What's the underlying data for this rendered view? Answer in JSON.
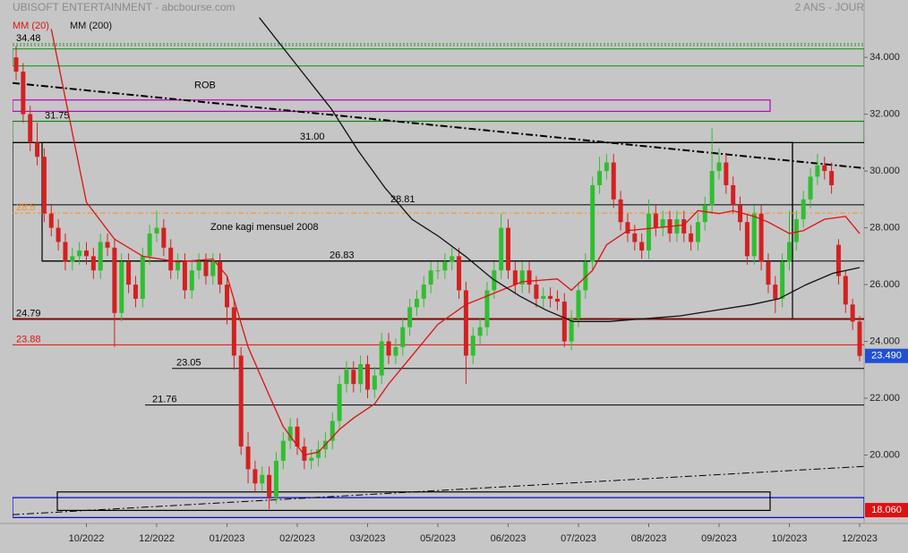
{
  "chart_data": {
    "type": "candlestick",
    "title": "UBISOFT ENTERTAINMENT - abcbourse.com",
    "subtitle": "2 ANS - JOUR",
    "categories": [
      null,
      null,
      null,
      null,
      null,
      null,
      null,
      null,
      null,
      null,
      "10/2022",
      null,
      null,
      null,
      null,
      null,
      null,
      null,
      null,
      null,
      "12/2022",
      null,
      null,
      null,
      null,
      null,
      null,
      null,
      null,
      null,
      "01/2023",
      null,
      null,
      null,
      null,
      null,
      null,
      null,
      null,
      null,
      "02/2023",
      null,
      null,
      null,
      null,
      null,
      null,
      null,
      null,
      null,
      "03/2023",
      null,
      null,
      null,
      null,
      null,
      null,
      null,
      null,
      null,
      "05/2023",
      null,
      null,
      null,
      null,
      null,
      null,
      null,
      null,
      null,
      "06/2023",
      null,
      null,
      null,
      null,
      null,
      null,
      null,
      null,
      null,
      "07/2023",
      null,
      null,
      null,
      null,
      null,
      null,
      null,
      null,
      null,
      "08/2023",
      null,
      null,
      null,
      null,
      null,
      null,
      null,
      null,
      null,
      "09/2023",
      null,
      null,
      null,
      null,
      null,
      null,
      null,
      null,
      null,
      "10/2023",
      null,
      null,
      null,
      null,
      null,
      null,
      null,
      null,
      null,
      "12/2023"
    ],
    "ohlc": {
      "up_color": "#2fbf2f",
      "down_color": "#d42020",
      "open": [
        34.0,
        33.5,
        32.0,
        31.0,
        30.5,
        28.5,
        28.0,
        27.5,
        26.8,
        27.0,
        27.2,
        27.0,
        26.5,
        27.5,
        27.3,
        25.0,
        26.8,
        26.0,
        25.5,
        27.0,
        27.8,
        28.0,
        27.3,
        26.5,
        26.8,
        25.8,
        26.5,
        26.8,
        26.3,
        26.8,
        26.0,
        25.2,
        23.5,
        20.3,
        19.5,
        19.0,
        19.3,
        18.5,
        19.8,
        20.5,
        21.0,
        20.3,
        19.8,
        19.9,
        20.2,
        20.5,
        21.2,
        22.5,
        23.0,
        22.5,
        23.2,
        22.3,
        22.8,
        24.0,
        23.5,
        23.8,
        24.5,
        25.2,
        25.5,
        26.0,
        26.5,
        26.5,
        26.8,
        27.0,
        25.8,
        23.5,
        24.2,
        24.5,
        25.8,
        26.5,
        28.0,
        26.5,
        26.0,
        26.5,
        26.0,
        25.5,
        25.6,
        25.5,
        25.4,
        24.0,
        24.8,
        25.8,
        26.8,
        29.5,
        30.0,
        30.3,
        29.0,
        28.2,
        27.8,
        27.5,
        27.2,
        28.5,
        28.0,
        28.3,
        27.8,
        28.3,
        27.8,
        27.5,
        28.2,
        28.8,
        30.0,
        30.3,
        29.5,
        28.8,
        28.2,
        27.0,
        28.5,
        26.8,
        26.0,
        25.5,
        26.8,
        27.5,
        28.3,
        29.0,
        29.8,
        30.2,
        30.0,
        27.4,
        26.3,
        25.3,
        24.7
      ],
      "high": [
        34.4,
        33.8,
        32.3,
        31.7,
        30.8,
        28.8,
        28.3,
        27.8,
        27.3,
        27.5,
        27.5,
        27.3,
        27.8,
        27.8,
        27.6,
        27.1,
        27.1,
        26.3,
        27.3,
        28.1,
        28.6,
        28.3,
        27.6,
        27.1,
        27.1,
        26.8,
        27.1,
        27.1,
        27.1,
        27.1,
        26.3,
        25.5,
        23.8,
        20.8,
        19.8,
        19.6,
        19.6,
        20.1,
        20.8,
        21.3,
        21.3,
        20.6,
        20.2,
        20.5,
        20.8,
        21.5,
        22.8,
        23.3,
        23.3,
        23.5,
        23.5,
        23.1,
        24.3,
        24.3,
        24.1,
        24.8,
        25.5,
        25.8,
        26.3,
        26.8,
        26.8,
        27.1,
        27.3,
        27.3,
        26.1,
        24.5,
        24.8,
        26.1,
        26.8,
        28.5,
        28.3,
        26.8,
        26.8,
        26.8,
        26.3,
        25.9,
        25.9,
        25.8,
        25.7,
        25.1,
        26.1,
        27.1,
        29.8,
        30.5,
        30.6,
        30.6,
        29.3,
        28.5,
        28.1,
        27.8,
        29.0,
        28.8,
        28.6,
        28.6,
        28.6,
        28.6,
        28.1,
        28.5,
        29.1,
        31.5,
        30.8,
        30.6,
        29.8,
        29.1,
        28.5,
        28.8,
        28.8,
        27.1,
        26.3,
        27.1,
        28.6,
        28.6,
        29.3,
        30.1,
        30.6,
        30.5,
        30.3,
        27.6,
        26.5,
        25.5,
        24.9
      ],
      "low": [
        33.2,
        31.7,
        30.7,
        30.2,
        28.2,
        27.7,
        27.2,
        26.5,
        26.5,
        26.7,
        26.7,
        26.2,
        26.2,
        27.0,
        23.8,
        24.7,
        25.7,
        25.2,
        25.2,
        26.7,
        27.5,
        27.0,
        26.2,
        26.2,
        25.5,
        25.5,
        26.2,
        26.0,
        26.0,
        25.7,
        24.6,
        23.0,
        20.0,
        19.0,
        18.7,
        18.7,
        18.1,
        18.3,
        19.5,
        20.2,
        20.0,
        19.5,
        19.5,
        19.6,
        19.9,
        20.2,
        20.9,
        22.2,
        22.2,
        22.2,
        22.0,
        22.0,
        22.5,
        23.2,
        23.2,
        23.5,
        24.2,
        24.9,
        25.2,
        25.7,
        26.2,
        26.2,
        26.5,
        25.5,
        22.5,
        23.2,
        23.9,
        24.2,
        25.5,
        26.2,
        26.2,
        25.7,
        25.7,
        25.7,
        25.2,
        25.2,
        25.2,
        25.1,
        23.8,
        23.7,
        24.5,
        25.5,
        26.5,
        29.2,
        29.7,
        28.7,
        27.9,
        27.5,
        27.2,
        26.9,
        26.9,
        27.7,
        27.7,
        27.5,
        27.5,
        27.5,
        27.2,
        27.2,
        27.9,
        28.5,
        29.7,
        29.2,
        28.5,
        27.9,
        26.7,
        26.7,
        26.5,
        25.7,
        25.0,
        25.2,
        26.5,
        27.2,
        28.0,
        28.7,
        29.5,
        29.7,
        29.2,
        26.0,
        25.0,
        24.4,
        23.3
      ],
      "close": [
        33.5,
        32.0,
        31.0,
        30.5,
        28.5,
        28.0,
        27.5,
        26.8,
        27.0,
        27.2,
        27.0,
        26.5,
        27.5,
        27.3,
        25.0,
        26.8,
        26.0,
        25.5,
        27.0,
        27.8,
        28.0,
        27.3,
        26.5,
        26.8,
        25.8,
        26.5,
        26.8,
        26.3,
        26.8,
        26.0,
        25.2,
        23.5,
        20.3,
        19.5,
        19.0,
        19.3,
        18.5,
        19.8,
        20.5,
        21.0,
        20.3,
        19.8,
        19.9,
        20.2,
        20.5,
        21.2,
        22.5,
        23.0,
        22.5,
        23.2,
        22.3,
        22.8,
        24.0,
        23.5,
        23.8,
        24.5,
        25.2,
        25.5,
        26.0,
        26.5,
        26.5,
        26.8,
        27.0,
        25.8,
        23.5,
        24.2,
        24.5,
        25.8,
        26.5,
        28.0,
        26.5,
        26.0,
        26.5,
        26.0,
        25.5,
        25.6,
        25.5,
        25.4,
        24.0,
        24.8,
        25.8,
        26.8,
        29.5,
        30.0,
        30.3,
        29.0,
        28.2,
        27.8,
        27.5,
        27.2,
        28.5,
        28.0,
        28.3,
        27.8,
        28.3,
        27.8,
        27.5,
        28.2,
        28.8,
        30.0,
        30.3,
        29.5,
        28.8,
        28.2,
        27.0,
        28.5,
        26.8,
        26.0,
        25.5,
        26.8,
        27.5,
        28.3,
        29.0,
        29.8,
        30.2,
        30.0,
        29.5,
        26.3,
        25.3,
        24.7,
        23.49
      ]
    },
    "series": [
      {
        "name": "MM (20)",
        "color": "#e01010",
        "x": [
          5,
          10,
          14,
          18,
          23,
          28,
          30,
          33,
          36,
          38,
          41,
          43,
          46,
          48,
          51,
          53,
          56,
          60,
          64,
          68,
          72,
          77,
          79,
          82,
          84,
          87,
          91,
          95,
          97,
          100,
          102,
          105,
          107,
          110,
          112,
          115,
          118,
          120
        ],
        "values": [
          35.0,
          28.9,
          27.6,
          27.0,
          26.8,
          26.9,
          26.3,
          23.8,
          22.1,
          21.0,
          20.0,
          20.1,
          20.9,
          21.3,
          21.8,
          22.5,
          23.4,
          24.6,
          25.3,
          25.7,
          26.1,
          26.2,
          25.8,
          26.5,
          27.4,
          27.9,
          28.0,
          28.1,
          28.6,
          28.5,
          28.6,
          28.4,
          28.2,
          27.8,
          27.9,
          28.3,
          28.4,
          27.8
        ]
      },
      {
        "name": "MM (200)",
        "color": "#111111",
        "x": [
          34.6,
          39.7,
          44.8,
          48.7,
          52.5,
          56.3,
          60.1,
          63.9,
          67.8,
          71.6,
          75.4,
          79.2,
          84.3,
          89.4,
          94.5,
          99.6,
          104.7,
          108.5,
          112.4,
          116.2,
          120
        ],
        "values": [
          35.4,
          33.8,
          32.2,
          30.7,
          29.4,
          28.3,
          27.7,
          27.0,
          26.2,
          25.6,
          25.1,
          24.7,
          24.7,
          24.8,
          24.9,
          25.1,
          25.3,
          25.5,
          26.0,
          26.4,
          26.6
        ]
      }
    ],
    "ylim": [
      17.59,
      36.02
    ],
    "yticks": [
      {
        "value": 34,
        "label": "34.000"
      },
      {
        "value": 32,
        "label": "32.000"
      },
      {
        "value": 30,
        "label": "30.000"
      },
      {
        "value": 28,
        "label": "28.000"
      },
      {
        "value": 26,
        "label": "26.000"
      },
      {
        "value": 24,
        "label": "24.000"
      },
      {
        "value": 22,
        "label": "22.000"
      },
      {
        "value": 20,
        "label": "20.000"
      }
    ],
    "levels": [
      {
        "value": 34.48,
        "label": "34.48",
        "color": "#2a9a2a"
      },
      {
        "value": 31.75,
        "label": "31.75",
        "color": "#1a7a1a"
      },
      {
        "value": 31,
        "label": "31.00",
        "color": "#000000"
      },
      {
        "value": 28.81,
        "label": "28.81",
        "color": "#000000"
      },
      {
        "value": 28.52,
        "label": "28.5",
        "color": "#ff8c1a"
      },
      {
        "value": 26.83,
        "label": "26.83",
        "color": "#000000"
      },
      {
        "value": 24.79,
        "label": "24.79",
        "color": "#8b0000"
      },
      {
        "value": 23.88,
        "label": "23.88",
        "color": "#e01010"
      },
      {
        "value": 23.05,
        "label": "23.05",
        "color": "#000000"
      },
      {
        "value": 21.76,
        "label": "21.76",
        "color": "#000000"
      }
    ],
    "zones": [
      {
        "label": "ROB",
        "top": 32.5,
        "bottom": 32.1,
        "color": "#c000c0"
      },
      {
        "top": 34.3,
        "bottom": 33.7,
        "color": "#2a9a2a"
      },
      {
        "top": 31.75,
        "bottom": 31.0,
        "color": "#2a9a2a"
      },
      {
        "label": "Zone kagi mensuel 2008",
        "top": 31.0,
        "bottom": 24.79,
        "color": "#000000"
      },
      {
        "top": 31.0,
        "bottom": 26.83,
        "color": "#000000"
      },
      {
        "top": 18.5,
        "bottom": 17.8,
        "color": "#0000cc"
      },
      {
        "top": 18.7,
        "bottom": 18.05,
        "color": "#000000"
      }
    ],
    "trendlines": [
      {
        "start": 33.1,
        "end": 30.1
      },
      {
        "start": 17.9,
        "end": 19.6
      }
    ],
    "last_price": {
      "value": 23.49,
      "label": "23.490",
      "color": "#1e4fd6"
    },
    "low_marker": {
      "value": 18.06,
      "label": "18.060",
      "color": "#e01010"
    }
  }
}
